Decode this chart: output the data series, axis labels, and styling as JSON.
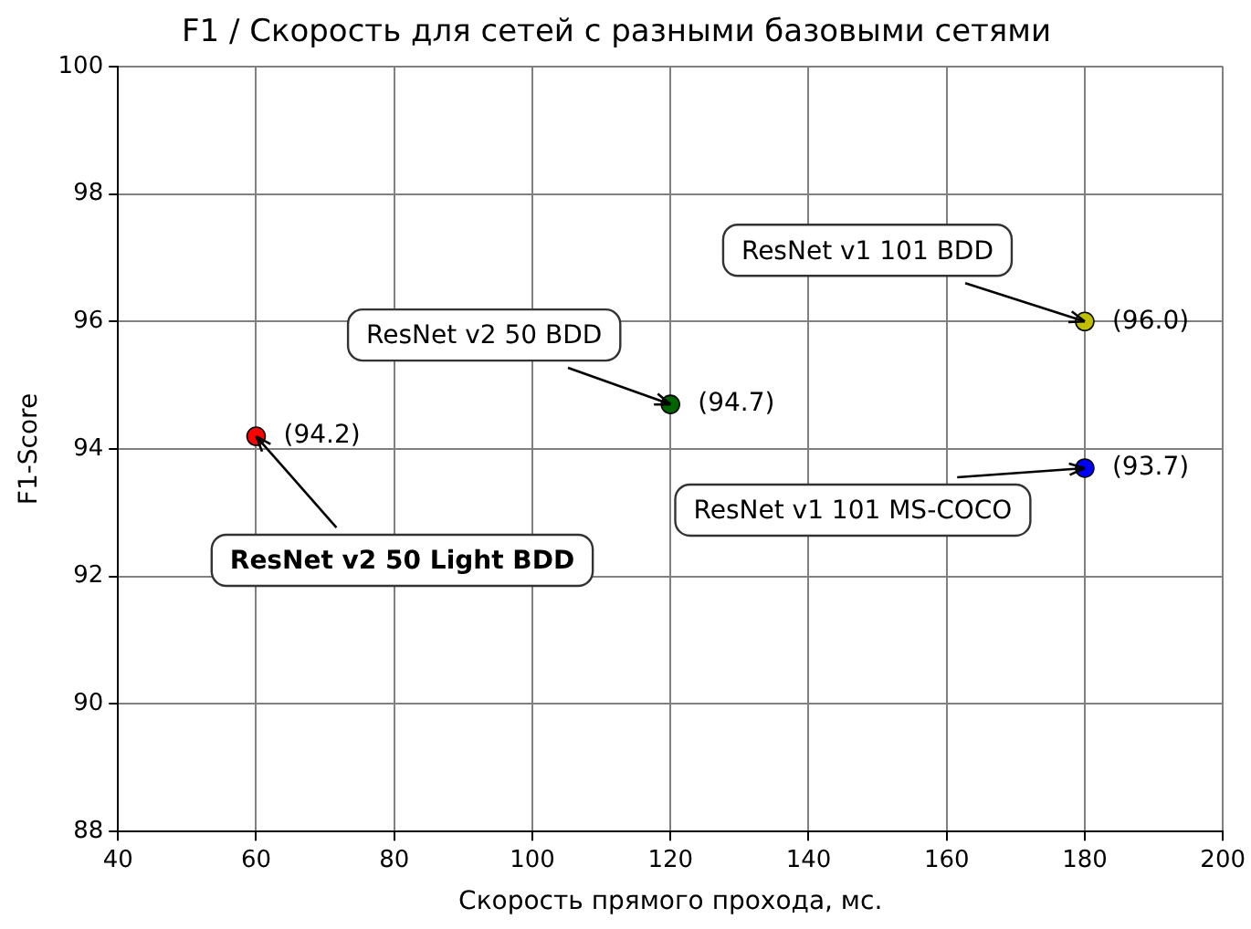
{
  "chart_data": {
    "type": "scatter",
    "title": "F1 / Скорость для сетей с разными базовыми сетями",
    "xlabel": "Скорость прямого прохода, мс.",
    "ylabel": "F1-Score",
    "x": [
      60,
      120,
      180,
      180
    ],
    "values": [
      94.2,
      94.7,
      96.0,
      93.7
    ],
    "colors": [
      "#ff0000",
      "#006400",
      "#bfbf00",
      "#0000ff"
    ],
    "value_labels": [
      "(94.2)",
      "(94.7)",
      "(96.0)",
      "(93.7)"
    ],
    "annotations": [
      {
        "text": "ResNet v2 50 Light BDD",
        "x": 60,
        "y": 94.2
      },
      {
        "text": "ResNet v2 50 BDD",
        "x": 120,
        "y": 94.7
      },
      {
        "text": "ResNet v1 101 BDD",
        "x": 180,
        "y": 96.0
      },
      {
        "text": "ResNet v1 101 MS-COCO",
        "x": 180,
        "y": 93.7
      }
    ],
    "xlim": [
      40,
      200
    ],
    "xticks": [
      40,
      60,
      80,
      100,
      120,
      140,
      160,
      180,
      200
    ],
    "ylim": [
      88,
      100
    ],
    "yticks": [
      88,
      90,
      92,
      94,
      96,
      98,
      100
    ],
    "grid": true,
    "legend": false,
    "marker": "circle"
  }
}
